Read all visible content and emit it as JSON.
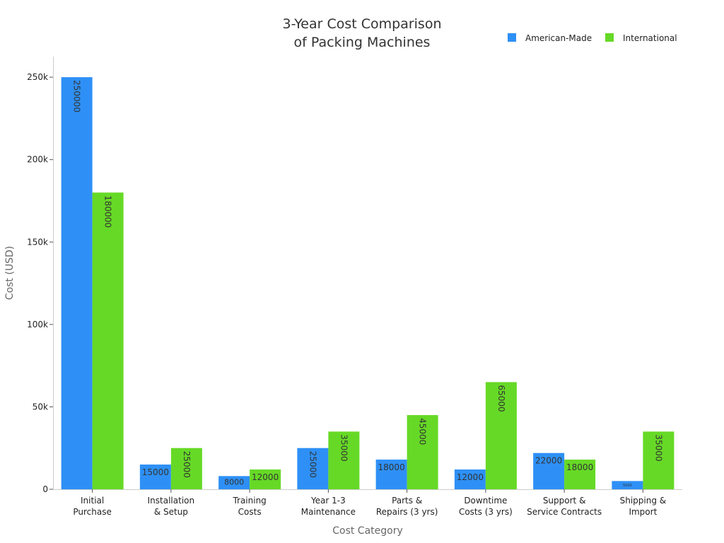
{
  "chart_data": {
    "type": "bar",
    "title": [
      "3-Year Cost Comparison",
      "of Packing Machines"
    ],
    "xlabel": "Cost Category",
    "ylabel": "Cost (USD)",
    "categories": [
      [
        "Initial",
        "Purchase"
      ],
      [
        "Installation",
        "& Setup"
      ],
      [
        "Training",
        "Costs"
      ],
      [
        "Year 1-3",
        "Maintenance"
      ],
      [
        "Parts &",
        "Repairs (3 yrs)"
      ],
      [
        "Downtime",
        "Costs (3 yrs)"
      ],
      [
        "Support &",
        "Service Contracts"
      ],
      [
        "Shipping &",
        "Import"
      ]
    ],
    "series": [
      {
        "name": "American-Made",
        "color": "#2E90F6",
        "values": [
          250000,
          15000,
          8000,
          25000,
          18000,
          12000,
          22000,
          5000
        ]
      },
      {
        "name": "International",
        "color": "#66D926",
        "values": [
          180000,
          25000,
          12000,
          35000,
          45000,
          65000,
          18000,
          35000
        ]
      }
    ],
    "ylim": [
      0,
      262500
    ],
    "yticks": [
      {
        "value": 0,
        "label": "0"
      },
      {
        "value": 50000,
        "label": "50k"
      },
      {
        "value": 100000,
        "label": "100k"
      },
      {
        "value": 150000,
        "label": "150k"
      },
      {
        "value": 200000,
        "label": "200k"
      },
      {
        "value": 250000,
        "label": "250k"
      }
    ],
    "data_labels": [
      [
        "250000",
        "15000",
        "8000",
        "25000",
        "18000",
        "12000",
        "22000",
        "5000"
      ],
      [
        "180000",
        "25000",
        "12000",
        "35000",
        "45000",
        "65000",
        "18000",
        "35000"
      ]
    ],
    "legend_position": "top-right",
    "grid": false
  }
}
